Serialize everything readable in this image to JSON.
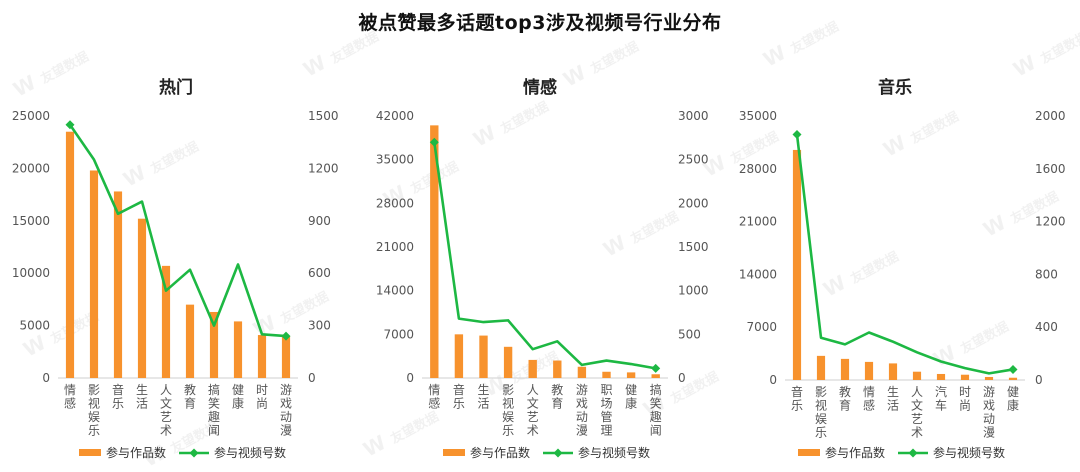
{
  "title": "被点赞最多话题top3涉及视频号行业分布",
  "watermark": "友望数据",
  "colors": {
    "bar": "#F7922D",
    "line": "#1DB843",
    "axis_text": "#555555",
    "tick_line": "#cfcfcf"
  },
  "legend": {
    "bar_label": "参与作品数",
    "line_label": "参与视频号数"
  },
  "chart_data": [
    {
      "type": "bar",
      "title": "热门",
      "categories": [
        "情感",
        "影视娱乐",
        "音乐",
        "生活",
        "人文艺术",
        "教育",
        "搞笑趣闻",
        "健康",
        "时尚",
        "游戏动漫"
      ],
      "y_left": {
        "ticks": [
          0,
          5000,
          10000,
          15000,
          20000,
          25000
        ],
        "ylim": [
          0,
          25000
        ]
      },
      "y_right": {
        "ticks": [
          0,
          300,
          600,
          900,
          1200,
          1500
        ],
        "ylim": [
          0,
          1500
        ]
      },
      "series": [
        {
          "name": "参与作品数",
          "type": "bar",
          "axis": "left",
          "values": [
            23500,
            19800,
            17800,
            15200,
            10700,
            7000,
            6300,
            5400,
            4100,
            4000
          ]
        },
        {
          "name": "参与视频号数",
          "type": "line",
          "axis": "right",
          "values": [
            1450,
            1250,
            940,
            1010,
            500,
            620,
            300,
            650,
            250,
            240
          ]
        }
      ],
      "legend_position": "bottom"
    },
    {
      "type": "bar",
      "title": "情感",
      "categories": [
        "情感",
        "音乐",
        "生活",
        "影视娱乐",
        "人文艺术",
        "教育",
        "游戏动漫",
        "职场管理",
        "健康",
        "搞笑趣闻"
      ],
      "y_left": {
        "ticks": [
          0,
          7000,
          14000,
          21000,
          28000,
          35000,
          42000
        ],
        "ylim": [
          0,
          42000
        ]
      },
      "y_right": {
        "ticks": [
          0,
          500,
          1000,
          1500,
          2000,
          2500,
          3000
        ],
        "ylim": [
          0,
          3000
        ]
      },
      "series": [
        {
          "name": "参与作品数",
          "type": "bar",
          "axis": "left",
          "values": [
            40500,
            7000,
            6800,
            5000,
            2900,
            2800,
            1800,
            1000,
            900,
            600
          ]
        },
        {
          "name": "参与视频号数",
          "type": "line",
          "axis": "right",
          "values": [
            2700,
            680,
            640,
            660,
            330,
            420,
            150,
            200,
            160,
            110
          ]
        }
      ],
      "legend_position": "bottom"
    },
    {
      "type": "bar",
      "title": "音乐",
      "categories": [
        "音乐",
        "影视娱乐",
        "教育",
        "情感",
        "生活",
        "人文艺术",
        "汽车",
        "时尚",
        "游戏动漫",
        "健康"
      ],
      "y_left": {
        "ticks": [
          0,
          7000,
          14000,
          21000,
          28000,
          35000
        ],
        "ylim": [
          0,
          35000
        ]
      },
      "y_right": {
        "ticks": [
          0,
          400,
          800,
          1200,
          1600,
          2000
        ],
        "ylim": [
          0,
          2000
        ]
      },
      "series": [
        {
          "name": "参与作品数",
          "type": "bar",
          "axis": "left",
          "values": [
            30500,
            3200,
            2800,
            2400,
            2200,
            1100,
            800,
            700,
            400,
            300
          ]
        },
        {
          "name": "参与视频号数",
          "type": "line",
          "axis": "right",
          "values": [
            1860,
            320,
            270,
            360,
            290,
            210,
            140,
            90,
            50,
            80
          ]
        }
      ],
      "legend_position": "bottom"
    }
  ]
}
